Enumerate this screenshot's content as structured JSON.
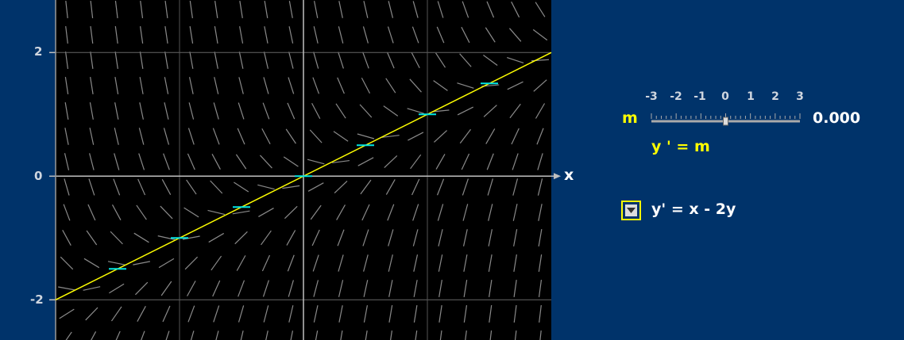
{
  "chart_data": {
    "type": "slope-field",
    "equation": "y' = x - 2y",
    "xlim": [
      -4,
      4
    ],
    "ylim": [
      -2.65,
      2.85
    ],
    "y_ticks": [
      "2",
      "0",
      "-2"
    ],
    "y_tick_values": [
      2,
      0,
      -2
    ],
    "x_axis_label": "x",
    "isocline": {
      "slope": 0.5,
      "intercept": 0
    },
    "isocline_marks": [
      {
        "x": -3,
        "y": -1.5
      },
      {
        "x": -2,
        "y": -1
      },
      {
        "x": -1,
        "y": -0.5
      },
      {
        "x": 0,
        "y": 0
      },
      {
        "x": 1,
        "y": 0.5
      },
      {
        "x": 2,
        "y": 1
      },
      {
        "x": 3,
        "y": 1.5
      }
    ],
    "colors": {
      "background": "#00336a",
      "plot_bg": "#000000",
      "field": "#8a8a8a",
      "isocline": "#ffff00",
      "marks": "#00e5e5",
      "axes": "#bfbfbf"
    }
  },
  "controls": {
    "slider_var": "m",
    "slider_ticks": [
      "-3",
      "-2",
      "-1",
      "0",
      "1",
      "2",
      "3"
    ],
    "slider_min": -3,
    "slider_max": 3,
    "slider_value": 0,
    "slider_value_text": "0.000",
    "slope_equation": "y ' = m",
    "dropdown_selected": "y' = x - 2y"
  }
}
